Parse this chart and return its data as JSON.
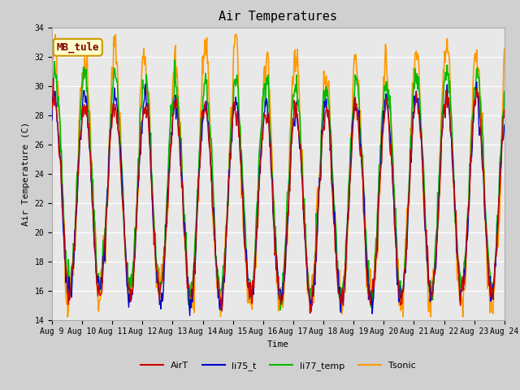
{
  "title": "Air Temperatures",
  "xlabel": "Time",
  "ylabel": "Air Temperature (C)",
  "ylim": [
    14,
    34
  ],
  "n_days": 15,
  "annotation_text": "MB_tule",
  "annotation_bg": "#ffffcc",
  "annotation_border": "#cc9900",
  "annotation_fg": "#800000",
  "fig_bg": "#d0d0d0",
  "axes_bg": "#e8e8e8",
  "series": {
    "AirT": {
      "color": "#cc0000",
      "lw": 1.0,
      "zorder": 4
    },
    "li75_t": {
      "color": "#0000cc",
      "lw": 1.0,
      "zorder": 3
    },
    "li77_temp": {
      "color": "#00bb00",
      "lw": 1.2,
      "zorder": 2
    },
    "Tsonic": {
      "color": "#ff9900",
      "lw": 1.2,
      "zorder": 1
    }
  },
  "yticks": [
    14,
    16,
    18,
    20,
    22,
    24,
    26,
    28,
    30,
    32,
    34
  ],
  "tick_fontsize": 7,
  "label_fontsize": 8,
  "title_fontsize": 11
}
